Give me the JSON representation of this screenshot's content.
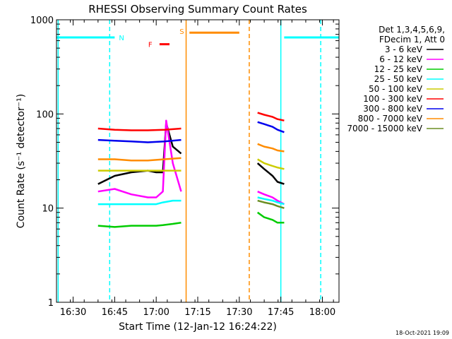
{
  "chart_data": {
    "type": "line",
    "title": "RHESSI Observing Summary Count Rates",
    "xlabel": "Start Time (12-Jan-12 16:24:22)",
    "ylabel": "Count Rate (s⁻¹ detector⁻¹)",
    "yscale": "log",
    "ylim": [
      1,
      1000
    ],
    "xlim_minutes": [
      16.4,
      18.1
    ],
    "x_ticks": [
      "16:30",
      "16:45",
      "17:00",
      "17:15",
      "17:30",
      "17:45",
      "18:00"
    ],
    "y_ticks": [
      "1",
      "10",
      "100",
      "1000"
    ],
    "legend_header": [
      "Det 1,3,4,5,6,9,",
      "FDecim 1, Att 0"
    ],
    "series": [
      {
        "name": "3 - 6 keV",
        "color": "#000000",
        "segments": [
          {
            "x": [
              16.65,
              16.75,
              16.85,
              16.95,
              17.0,
              17.04,
              17.06,
              17.1,
              17.15
            ],
            "y": [
              18,
              22,
              24,
              25,
              24,
              24,
              80,
              45,
              38
            ]
          },
          {
            "x": [
              17.61,
              17.65,
              17.7,
              17.73,
              17.77
            ],
            "y": [
              30,
              26,
              22,
              19,
              18
            ]
          }
        ]
      },
      {
        "name": "6 - 12 keV",
        "color": "#ff00ff",
        "segments": [
          {
            "x": [
              16.65,
              16.75,
              16.85,
              16.95,
              17.0,
              17.04,
              17.06,
              17.1,
              17.15
            ],
            "y": [
              15,
              16,
              14,
              13,
              13,
              15,
              85,
              30,
              15
            ]
          },
          {
            "x": [
              17.61,
              17.65,
              17.7,
              17.73,
              17.77
            ],
            "y": [
              15,
              14,
              13,
              12,
              11
            ]
          }
        ]
      },
      {
        "name": "12 - 25 keV",
        "color": "#00cc00",
        "segments": [
          {
            "x": [
              16.65,
              16.75,
              16.85,
              16.95,
              17.0,
              17.04,
              17.1,
              17.15
            ],
            "y": [
              6.5,
              6.3,
              6.5,
              6.5,
              6.5,
              6.6,
              6.8,
              7
            ]
          },
          {
            "x": [
              17.61,
              17.65,
              17.7,
              17.73,
              17.77
            ],
            "y": [
              9,
              8,
              7.5,
              7,
              7
            ]
          }
        ]
      },
      {
        "name": "25 - 50 keV",
        "color": "#00ffff",
        "segments": [
          {
            "x": [
              16.65,
              16.75,
              16.85,
              16.95,
              17.0,
              17.04,
              17.1,
              17.15
            ],
            "y": [
              11,
              11,
              11,
              11,
              11,
              11.5,
              12,
              12
            ]
          },
          {
            "x": [
              17.61,
              17.65,
              17.7,
              17.73,
              17.77
            ],
            "y": [
              13,
              12.5,
              12,
              11.5,
              11
            ]
          }
        ]
      },
      {
        "name": "50 - 100 keV",
        "color": "#cccc00",
        "segments": [
          {
            "x": [
              16.65,
              16.75,
              16.85,
              16.95,
              17.05,
              17.15
            ],
            "y": [
              25,
              25,
              25,
              25,
              25,
              25
            ]
          },
          {
            "x": [
              17.61,
              17.65,
              17.7,
              17.73,
              17.77
            ],
            "y": [
              33,
              30,
              28,
              27,
              26
            ]
          }
        ]
      },
      {
        "name": "100 - 300 keV",
        "color": "#ff0000",
        "segments": [
          {
            "x": [
              16.65,
              16.75,
              16.85,
              16.95,
              17.05,
              17.15
            ],
            "y": [
              70,
              68,
              67,
              67,
              68,
              70
            ]
          },
          {
            "x": [
              17.61,
              17.65,
              17.7,
              17.73,
              17.77
            ],
            "y": [
              103,
              98,
              93,
              88,
              85
            ]
          }
        ]
      },
      {
        "name": "300 - 800 keV",
        "color": "#0000ee",
        "segments": [
          {
            "x": [
              16.65,
              16.75,
              16.85,
              16.95,
              17.05,
              17.15
            ],
            "y": [
              53,
              52,
              51,
              50,
              51,
              53
            ]
          },
          {
            "x": [
              17.61,
              17.65,
              17.7,
              17.73,
              17.77
            ],
            "y": [
              82,
              78,
              73,
              68,
              64
            ]
          }
        ]
      },
      {
        "name": "800 - 7000 keV",
        "color": "#ff8c00",
        "segments": [
          {
            "x": [
              16.65,
              16.75,
              16.85,
              16.95,
              17.05,
              17.15
            ],
            "y": [
              33,
              33,
              32,
              32,
              33,
              34
            ]
          },
          {
            "x": [
              17.61,
              17.65,
              17.7,
              17.73,
              17.77
            ],
            "y": [
              48,
              45,
              43,
              41,
              40
            ]
          }
        ]
      },
      {
        "name": "7000 - 15000 keV",
        "color": "#6b8e23",
        "segments": [
          {
            "x": [
              17.61,
              17.65,
              17.7,
              17.73,
              17.77
            ],
            "y": [
              12,
              11.5,
              11,
              10.5,
              10
            ]
          }
        ]
      }
    ],
    "flags": [
      {
        "label": "N",
        "color": "#00ffff",
        "bars": [
          [
            16.4,
            16.75
          ],
          [
            17.77,
            18.1
          ]
        ],
        "level": 650
      },
      {
        "label": "S",
        "color": "#ff8c00",
        "bars": [
          [
            17.2,
            17.5
          ]
        ],
        "level": 730
      },
      {
        "label": "F",
        "color": "#ff0000",
        "bars": [
          [
            17.02,
            17.08
          ]
        ],
        "level": 550
      }
    ],
    "vlines": [
      {
        "x": 16.41,
        "color": "#00ffff",
        "dash": false
      },
      {
        "x": 16.72,
        "color": "#00ffff",
        "dash": true
      },
      {
        "x": 17.18,
        "color": "#ff8c00",
        "dash": false
      },
      {
        "x": 17.56,
        "color": "#ff8c00",
        "dash": true
      },
      {
        "x": 17.75,
        "color": "#00ffff",
        "dash": false
      },
      {
        "x": 17.99,
        "color": "#00ffff",
        "dash": true
      }
    ]
  },
  "footer": {
    "timestamp": "18-Oct-2021 19:09"
  }
}
